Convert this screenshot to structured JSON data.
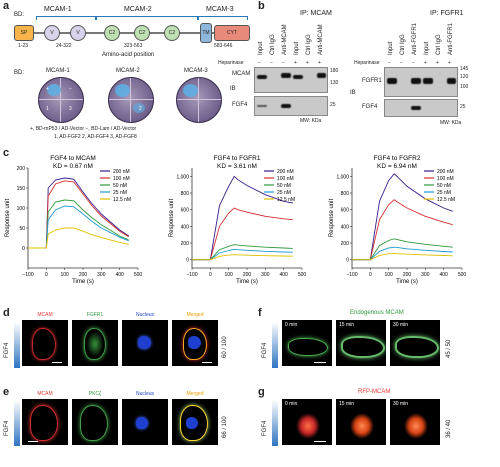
{
  "panels": {
    "a": "a",
    "b": "b",
    "c": "c",
    "d": "d",
    "e": "e",
    "f": "f",
    "g": "g"
  },
  "panel_a": {
    "bd_label": "BD:",
    "sp_label": "SP",
    "domain_titles": [
      "MCAM-1",
      "MCAM-2",
      "MCAM-3"
    ],
    "domains": [
      "V",
      "V",
      "C2",
      "C2",
      "C2",
      "TM",
      "CYT"
    ],
    "ranges": [
      "1-23",
      "24-322",
      "323-563",
      "583-646"
    ],
    "axis_label": "Amino-acid position",
    "dish_bd_label": "BD:",
    "dish_titles": [
      "MCAM-1",
      "MCAM-2",
      "MCAM-3"
    ],
    "quadrants": [
      "+",
      "−",
      "1",
      "3",
      "2"
    ],
    "legend_line1": "+, BD-mP53 / AD-Vector    −, BD-Lam / AD-Vector",
    "legend_line2": "1, AD-FGF2   2, AD-FGF4   3, AD-FGF8"
  },
  "panel_b": {
    "left_title": "IP: MCAM",
    "right_title": "IP: FGFR1",
    "col_headers_left": [
      "Input",
      "Ctrl IgG",
      "Anti-MCAM",
      "Input",
      "Ctrl IgG",
      "Anti-MCAM"
    ],
    "col_headers_right": [
      "Input",
      "Ctrl IgG",
      "Anti-FGFR1",
      "Input",
      "Ctrl IgG",
      "Anti-FGFR1"
    ],
    "heparinase": "Heparinase",
    "hep_marks": [
      "−",
      "−",
      "−",
      "+",
      "+",
      "+"
    ],
    "ib": "IB",
    "rows_left": [
      "MCAM",
      "FGF4"
    ],
    "rows_right": [
      "FGFR1",
      "FGF4"
    ],
    "mw_left": [
      "180",
      "130",
      "25"
    ],
    "mw_right": [
      "145",
      "120",
      "100",
      "25"
    ],
    "mw_unit": "MW: KDa"
  },
  "panel_c": {
    "legend": [
      "200 nM",
      "100 nM",
      "50 nM",
      "25 nM",
      "12.5 nM"
    ],
    "legend_colors": [
      "#3b1c8c",
      "#d32f2f",
      "#2e9a3b",
      "#1f9bd1",
      "#e0c000"
    ],
    "ylabel": "Response unit",
    "xlabel": "Time (s)"
  },
  "chart_data": [
    {
      "type": "line",
      "title": "FGF4 to MCAM",
      "kd": "K_D = 0.67 nM",
      "kd_display": "KD = 0.67 nM",
      "xlabel": "Time (s)",
      "ylabel": "Response unit",
      "xlim": [
        -100,
        500
      ],
      "ylim": [
        -50,
        200
      ],
      "xticks": [
        -100,
        0,
        100,
        200,
        300,
        400,
        500
      ],
      "yticks": [
        0,
        50,
        100,
        150,
        200
      ],
      "ytick_labels": [
        "0",
        "50",
        "100",
        "150",
        "200"
      ],
      "x": [
        -100,
        0,
        10,
        50,
        100,
        150,
        200,
        250,
        300,
        400,
        450
      ],
      "series": [
        {
          "name": "200 nM",
          "values": [
            0,
            0,
            150,
            170,
            175,
            172,
            140,
            110,
            85,
            45,
            30
          ]
        },
        {
          "name": "100 nM",
          "values": [
            0,
            0,
            130,
            160,
            168,
            165,
            135,
            105,
            80,
            42,
            28
          ]
        },
        {
          "name": "50 nM",
          "values": [
            0,
            0,
            90,
            115,
            120,
            118,
            95,
            75,
            58,
            30,
            20
          ]
        },
        {
          "name": "25 nM",
          "values": [
            0,
            0,
            70,
            95,
            105,
            103,
            85,
            66,
            50,
            27,
            18
          ]
        },
        {
          "name": "12.5 nM",
          "values": [
            0,
            0,
            35,
            45,
            50,
            50,
            42,
            33,
            26,
            14,
            9
          ]
        }
      ]
    },
    {
      "type": "line",
      "title": "FGF4 to FGFR1",
      "kd": "K_D = 3.61 nM",
      "kd_display": "KD = 3.61 nM",
      "xlabel": "Time (s)",
      "ylabel": "Response unit",
      "xlim": [
        -100,
        500
      ],
      "ylim": [
        -100,
        1100
      ],
      "xticks": [
        -100,
        0,
        100,
        200,
        300,
        400,
        500
      ],
      "yticks": [
        0,
        200,
        400,
        600,
        800,
        1000
      ],
      "ytick_labels": [
        "0",
        "200",
        "400",
        "600",
        "800",
        "1,000"
      ],
      "x": [
        -100,
        0,
        50,
        100,
        130,
        150,
        200,
        300,
        400,
        450
      ],
      "series": [
        {
          "name": "200 nM",
          "values": [
            0,
            0,
            650,
            880,
            1000,
            960,
            890,
            780,
            700,
            680
          ]
        },
        {
          "name": "100 nM",
          "values": [
            0,
            0,
            400,
            560,
            620,
            600,
            570,
            520,
            490,
            480
          ]
        },
        {
          "name": "50 nM",
          "values": [
            0,
            0,
            120,
            160,
            180,
            175,
            165,
            150,
            140,
            135
          ]
        },
        {
          "name": "25 nM",
          "values": [
            0,
            0,
            80,
            110,
            125,
            120,
            112,
            100,
            92,
            90
          ]
        },
        {
          "name": "12.5 nM",
          "values": [
            0,
            0,
            40,
            55,
            60,
            58,
            54,
            48,
            44,
            42
          ]
        }
      ]
    },
    {
      "type": "line",
      "title": "FGF4 to FGFR2",
      "kd": "K_D = 6.94 nM",
      "kd_display": "KD = 6.94 nM",
      "xlabel": "Time (s)",
      "ylabel": "Response unit",
      "xlim": [
        -100,
        500
      ],
      "ylim": [
        -100,
        1100
      ],
      "xticks": [
        -100,
        0,
        100,
        200,
        300,
        400,
        500
      ],
      "yticks": [
        0,
        200,
        400,
        600,
        800,
        1000
      ],
      "ytick_labels": [
        "0",
        "200",
        "400",
        "600",
        "800",
        "1,000"
      ],
      "x": [
        -100,
        0,
        50,
        100,
        130,
        150,
        200,
        300,
        400,
        450
      ],
      "series": [
        {
          "name": "200 nM",
          "values": [
            0,
            0,
            700,
            950,
            1030,
            990,
            880,
            730,
            620,
            580
          ]
        },
        {
          "name": "100 nM",
          "values": [
            0,
            0,
            480,
            660,
            720,
            690,
            620,
            520,
            450,
            420
          ]
        },
        {
          "name": "50 nM",
          "values": [
            0,
            0,
            170,
            230,
            250,
            240,
            215,
            185,
            160,
            150
          ]
        },
        {
          "name": "25 nM",
          "values": [
            0,
            0,
            100,
            140,
            150,
            145,
            130,
            112,
            98,
            92
          ]
        },
        {
          "name": "12.5 nM",
          "values": [
            0,
            0,
            50,
            70,
            75,
            72,
            66,
            57,
            50,
            47
          ]
        }
      ]
    }
  ],
  "panel_d": {
    "channels": [
      "MCAM",
      "FGFR1",
      "Nucleus",
      "Merged"
    ],
    "channel_colors": [
      "#e53935",
      "#2e9a3b",
      "#1e3fcf",
      "#f0a000"
    ],
    "side": "FGF4",
    "ratio": "60 / 100"
  },
  "panel_e": {
    "channels": [
      "MCAM",
      "PKCζ",
      "Nucleus",
      "Merged"
    ],
    "channel_colors": [
      "#e53935",
      "#2e9a3b",
      "#1e3fcf",
      "#f0a000"
    ],
    "side": "FGF4",
    "ratio": "66 / 100"
  },
  "panel_f": {
    "title": "Endogenous MCAM",
    "title_color": "#2e9a3b",
    "times": [
      "0 min",
      "15 min",
      "30 min"
    ],
    "side": "FGF4",
    "ratio": "45 / 50"
  },
  "panel_g": {
    "title": "RFP-MCAM",
    "title_color": "#e53935",
    "times": [
      "0 min",
      "15 min",
      "30 min"
    ],
    "side": "FGF4",
    "ratio": "36 / 40"
  }
}
